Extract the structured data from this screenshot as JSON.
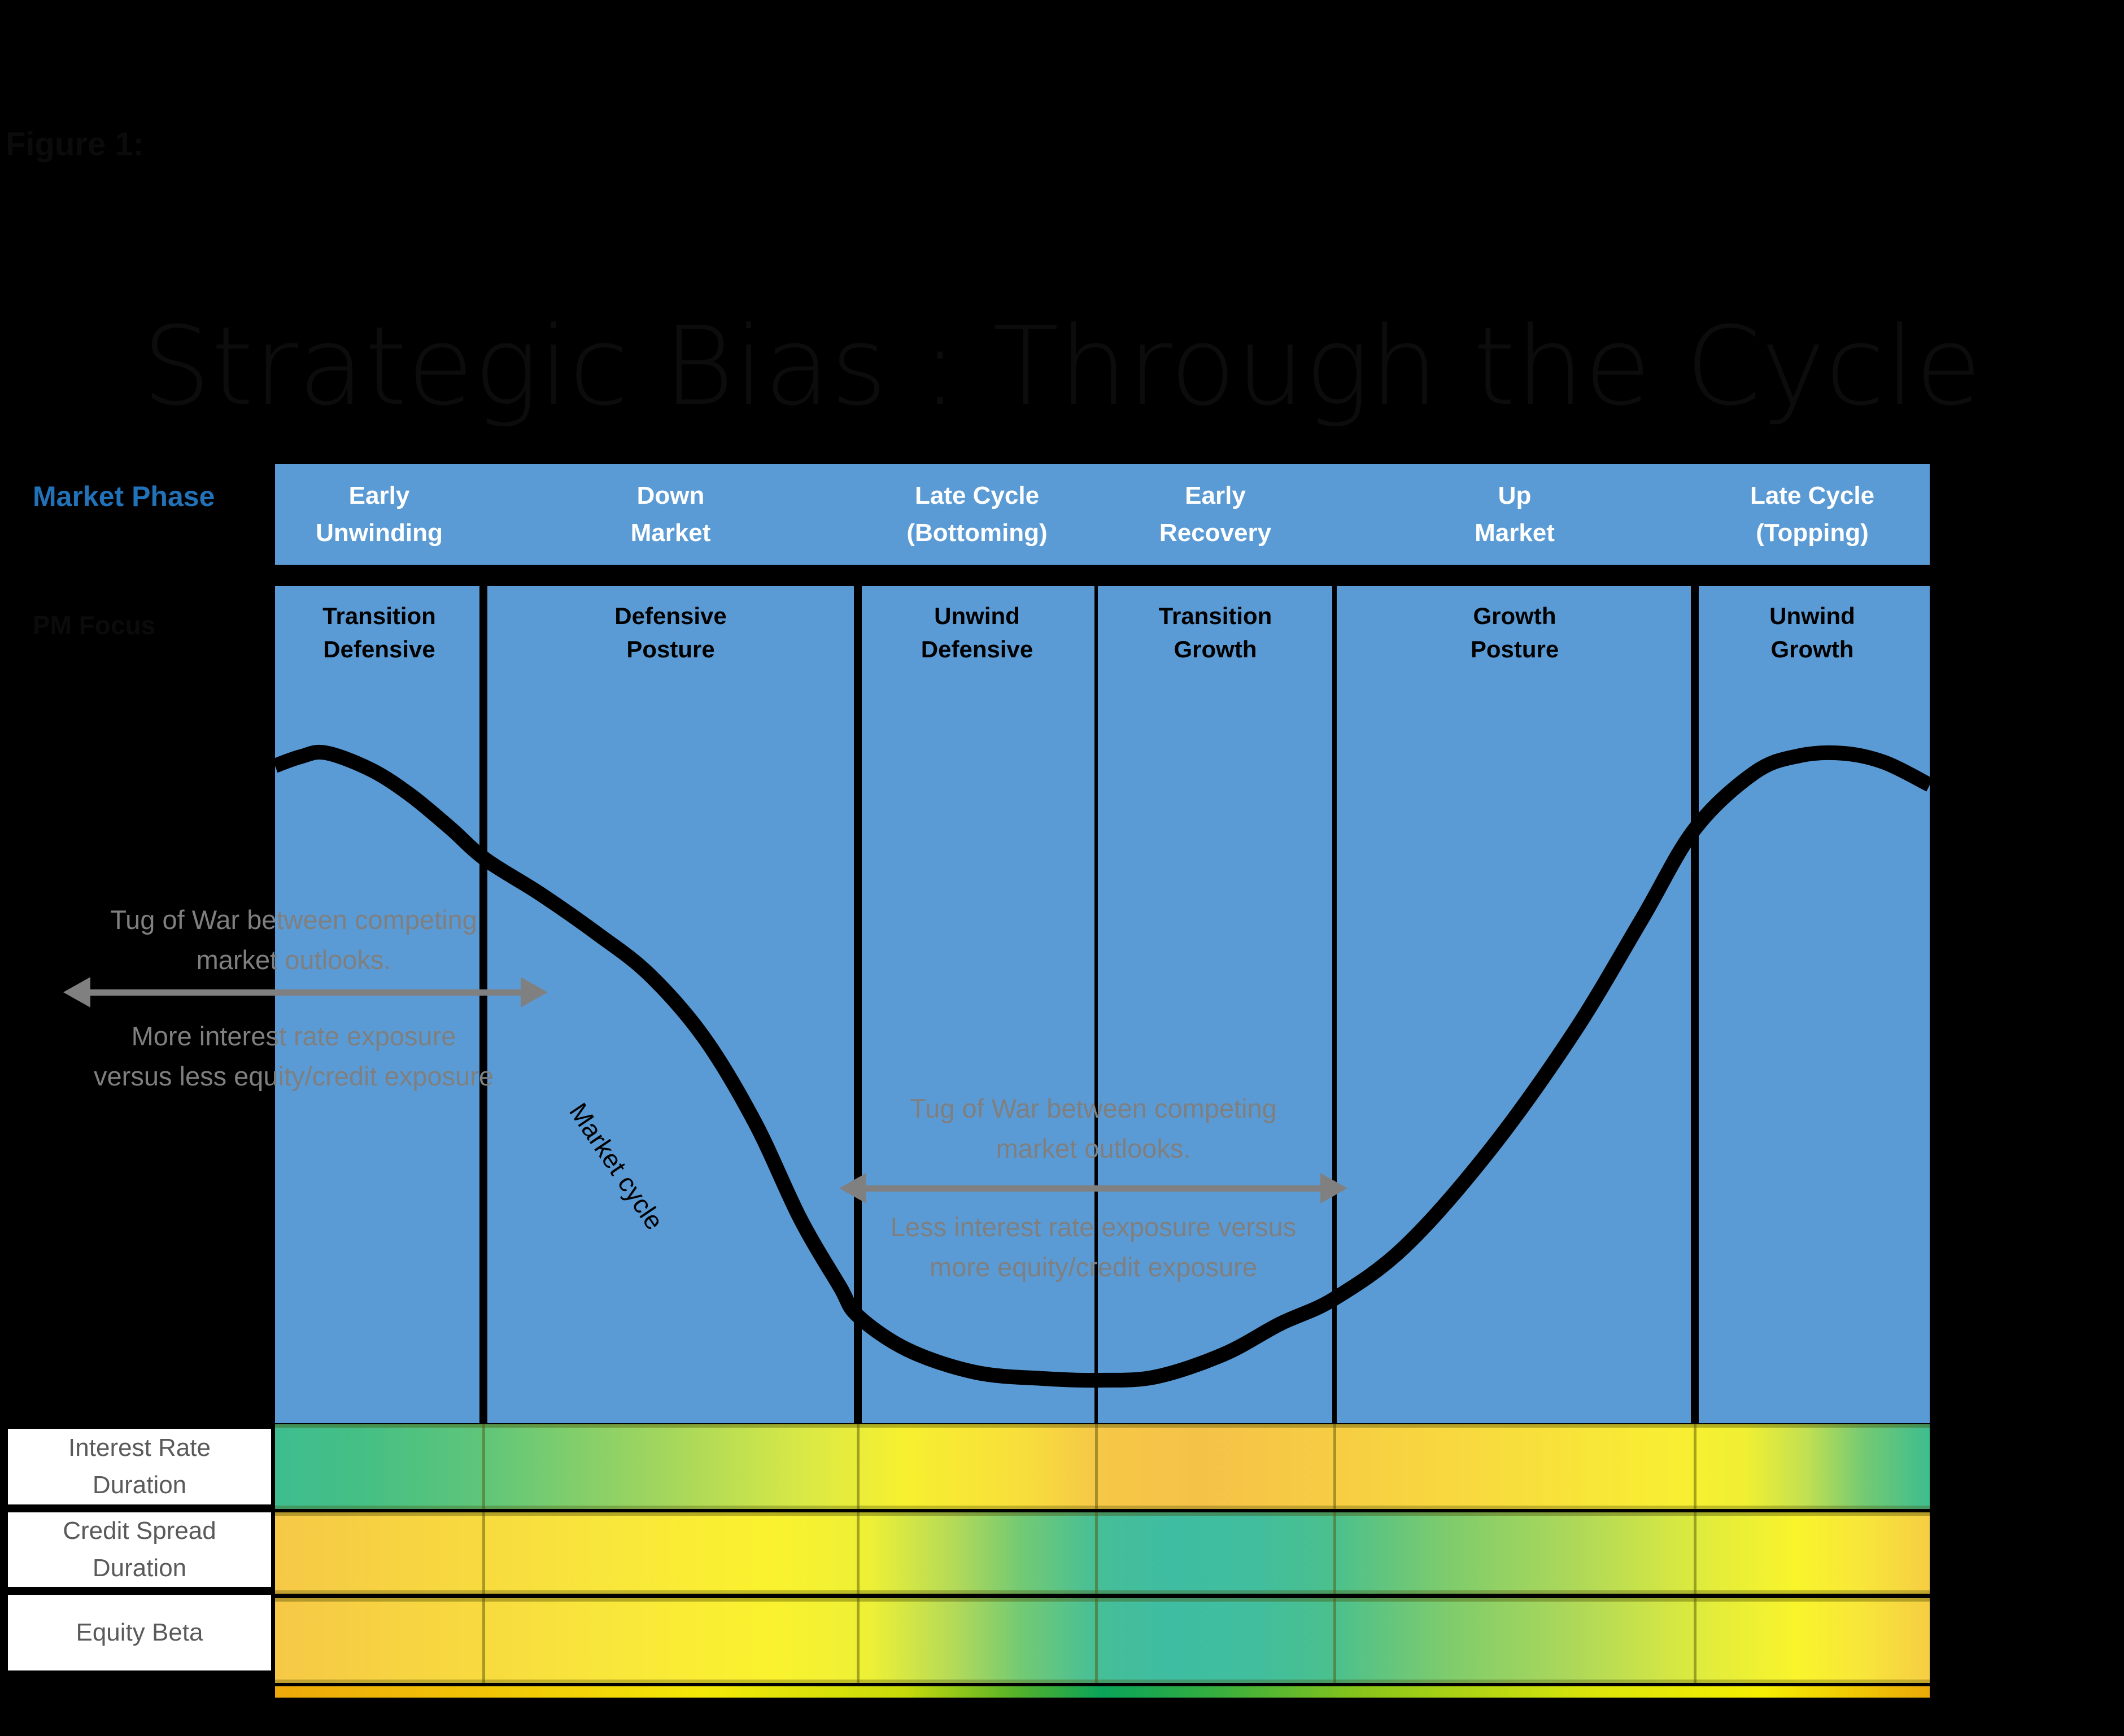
{
  "figure_label": "Figure 1:",
  "title": "Strategic Bias : Through the Cycle",
  "left_axis": {
    "market_phase": "Market Phase",
    "pm_focus": "PM Focus"
  },
  "columns": [
    {
      "phase": "Early\nUnwinding",
      "focus": "Transition\nDefensive"
    },
    {
      "phase": "Down\nMarket",
      "focus": "Defensive\nPosture"
    },
    {
      "phase": "Late Cycle\n(Bottoming)",
      "focus": "Unwind\nDefensive"
    },
    {
      "phase": "Early\nRecovery",
      "focus": "Transition\nGrowth"
    },
    {
      "phase": "Up\nMarket",
      "focus": "Growth\nPosture"
    },
    {
      "phase": "Late Cycle\n(Topping)",
      "focus": "Unwind\nGrowth"
    }
  ],
  "curve": {
    "label": "Market cycle",
    "points": [
      [
        0,
        318
      ],
      [
        45,
        302
      ],
      [
        90,
        295
      ],
      [
        170,
        325
      ],
      [
        240,
        370
      ],
      [
        310,
        428
      ],
      [
        373,
        484
      ],
      [
        470,
        545
      ],
      [
        570,
        615
      ],
      [
        663,
        688
      ],
      [
        760,
        800
      ],
      [
        850,
        950
      ],
      [
        930,
        1120
      ],
      [
        1000,
        1240
      ],
      [
        1032,
        1292
      ],
      [
        1120,
        1352
      ],
      [
        1240,
        1392
      ],
      [
        1360,
        1403
      ],
      [
        1458,
        1406
      ],
      [
        1560,
        1400
      ],
      [
        1680,
        1360
      ],
      [
        1780,
        1306
      ],
      [
        1875,
        1262
      ],
      [
        2000,
        1170
      ],
      [
        2150,
        1000
      ],
      [
        2300,
        790
      ],
      [
        2420,
        590
      ],
      [
        2514,
        430
      ],
      [
        2620,
        330
      ],
      [
        2700,
        300
      ],
      [
        2778,
        296
      ],
      [
        2850,
        312
      ],
      [
        2930,
        352
      ]
    ]
  },
  "annotations": {
    "left": {
      "tug": "Tug of War between competing\nmarket outlooks.",
      "exposure": "More interest rate exposure\nversus less equity/credit exposure"
    },
    "middle": {
      "tug": "Tug of War between competing\nmarket outlooks.",
      "exposure": "Less interest rate exposure versus\nmore equity/credit exposure"
    }
  },
  "exposure_rows": [
    {
      "label": "Interest Rate\nDuration",
      "gradient": [
        [
          0,
          "#3EBD90"
        ],
        [
          5,
          "#44BF85"
        ],
        [
          12.6,
          "#5FC67A"
        ],
        [
          24,
          "#A6D75C"
        ],
        [
          32,
          "#D9E945"
        ],
        [
          38,
          "#F7F02F"
        ],
        [
          45,
          "#F8DF3B"
        ],
        [
          49.6,
          "#F6C847"
        ],
        [
          56,
          "#F5C248"
        ],
        [
          64,
          "#F7CD43"
        ],
        [
          75,
          "#F8DE3D"
        ],
        [
          85,
          "#F9EF32"
        ],
        [
          89,
          "#EFEF33"
        ],
        [
          92.5,
          "#C3E052"
        ],
        [
          96,
          "#74CA72"
        ],
        [
          100,
          "#3EBD90"
        ]
      ]
    },
    {
      "label": "Credit Spread\nDuration",
      "gradient": [
        [
          0,
          "#F6C846"
        ],
        [
          8,
          "#F7D441"
        ],
        [
          20,
          "#F9E63B"
        ],
        [
          30,
          "#FAF22E"
        ],
        [
          36,
          "#EDF036"
        ],
        [
          41,
          "#B4DA58"
        ],
        [
          45,
          "#74CA73"
        ],
        [
          49.6,
          "#46BF97"
        ],
        [
          54,
          "#3FBDA2"
        ],
        [
          59,
          "#40BE9E"
        ],
        [
          64,
          "#4BC08D"
        ],
        [
          71,
          "#7FCC6C"
        ],
        [
          79,
          "#B1D958"
        ],
        [
          87,
          "#E4ED3A"
        ],
        [
          92,
          "#F9F42C"
        ],
        [
          96,
          "#F8E53A"
        ],
        [
          100,
          "#F6CE43"
        ]
      ]
    },
    {
      "label": "Equity Beta",
      "gradient": [
        [
          0,
          "#F6C846"
        ],
        [
          8,
          "#F7D441"
        ],
        [
          20,
          "#F9E63B"
        ],
        [
          30,
          "#FAF22E"
        ],
        [
          36,
          "#EDF036"
        ],
        [
          41,
          "#B4DA58"
        ],
        [
          45,
          "#74CA73"
        ],
        [
          49.6,
          "#46BF97"
        ],
        [
          54,
          "#3FBDA2"
        ],
        [
          59,
          "#40BE9E"
        ],
        [
          64,
          "#4BC08D"
        ],
        [
          71,
          "#7FCC6C"
        ],
        [
          79,
          "#B1D958"
        ],
        [
          87,
          "#E4ED3A"
        ],
        [
          92,
          "#F9F42C"
        ],
        [
          96,
          "#F8E53A"
        ],
        [
          100,
          "#F6CE43"
        ]
      ]
    }
  ],
  "bottom_strip_gradient": [
    [
      0,
      "#EDA90A"
    ],
    [
      12,
      "#F1C307"
    ],
    [
      26,
      "#F3E908"
    ],
    [
      38,
      "#C8DB0A"
    ],
    [
      45,
      "#52B02B"
    ],
    [
      50,
      "#0AA45A"
    ],
    [
      56,
      "#2FAC42"
    ],
    [
      66,
      "#8CC61A"
    ],
    [
      80,
      "#DCE60A"
    ],
    [
      90,
      "#F5EE02"
    ],
    [
      95,
      "#F0CC05"
    ],
    [
      100,
      "#E9A908"
    ]
  ],
  "colors": {
    "phase_blue": "#5B9BD5",
    "market_phase_text": "#2272B9",
    "annotation_gray": "#7F7F7F",
    "arrow_gray": "#808080",
    "row_label_gray": "#5A5A5A",
    "curve_black": "#000000",
    "green": "#3EBD90",
    "yellow": "#FAF22E",
    "gold": "#F6C545"
  }
}
